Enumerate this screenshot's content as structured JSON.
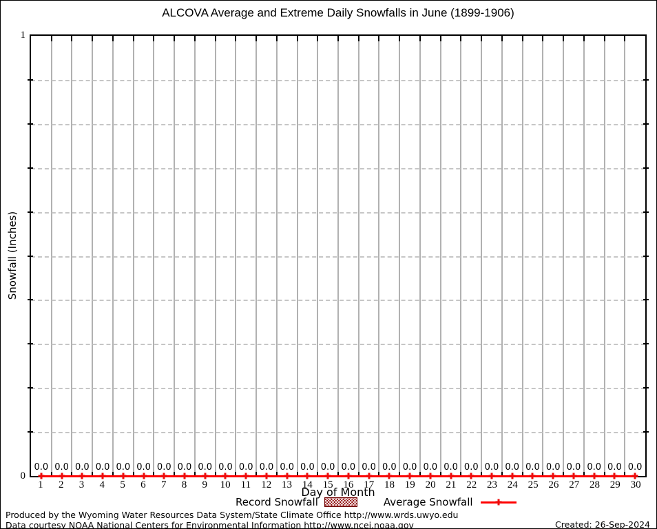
{
  "chart_data": {
    "type": "line",
    "title": "ALCOVA Average and Extreme Daily Snowfalls in June (1899-1906)",
    "xlabel": "Day of Month",
    "ylabel": "Snowfall (Inches)",
    "ylim": [
      0,
      1
    ],
    "ytick_step": 0.1,
    "grid": {
      "x": "solid-gray",
      "y": "dashed-gray"
    },
    "legend_position": "bottom-center",
    "x": [
      1,
      2,
      3,
      4,
      5,
      6,
      7,
      8,
      9,
      10,
      11,
      12,
      13,
      14,
      15,
      16,
      17,
      18,
      19,
      20,
      21,
      22,
      23,
      24,
      25,
      26,
      27,
      28,
      29,
      30
    ],
    "series": [
      {
        "name": "Record Snowfall",
        "style": "box-hatched",
        "color": "#8b0000",
        "values": [
          0,
          0,
          0,
          0,
          0,
          0,
          0,
          0,
          0,
          0,
          0,
          0,
          0,
          0,
          0,
          0,
          0,
          0,
          0,
          0,
          0,
          0,
          0,
          0,
          0,
          0,
          0,
          0,
          0,
          0
        ]
      },
      {
        "name": "Average Snowfall",
        "style": "line-with-plus-markers",
        "color": "#ff0000",
        "values": [
          0,
          0,
          0,
          0,
          0,
          0,
          0,
          0,
          0,
          0,
          0,
          0,
          0,
          0,
          0,
          0,
          0,
          0,
          0,
          0,
          0,
          0,
          0,
          0,
          0,
          0,
          0,
          0,
          0,
          0
        ]
      }
    ],
    "point_labels": [
      "0.0",
      "0.0",
      "0.0",
      "0.0",
      "0.0",
      "0.0",
      "0.0",
      "0.0",
      "0.0",
      "0.0",
      "0.0",
      "0.0",
      "0.0",
      "0.0",
      "0.0",
      "0.0",
      "0.0",
      "0.0",
      "0.0",
      "0.0",
      "0.0",
      "0.0",
      "0.0",
      "0.0",
      "0.0",
      "0.0",
      "0.0",
      "0.0",
      "0.0",
      "0.0"
    ]
  },
  "footer": {
    "line1": "Produced by the Wyoming Water Resources Data System/State Climate Office http://www.wrds.uwyo.edu",
    "line2": "Data courtesy NOAA National Centers for Environmental Information http://www.ncei.noaa.gov",
    "created": "Created: 26-Sep-2024"
  },
  "colors": {
    "grid_vertical": "#b1b1b1",
    "grid_horizontal_dashed": "#c6c6c6",
    "axis": "#000000",
    "record_fill": "#8b0000",
    "average_line": "#ff0000"
  }
}
